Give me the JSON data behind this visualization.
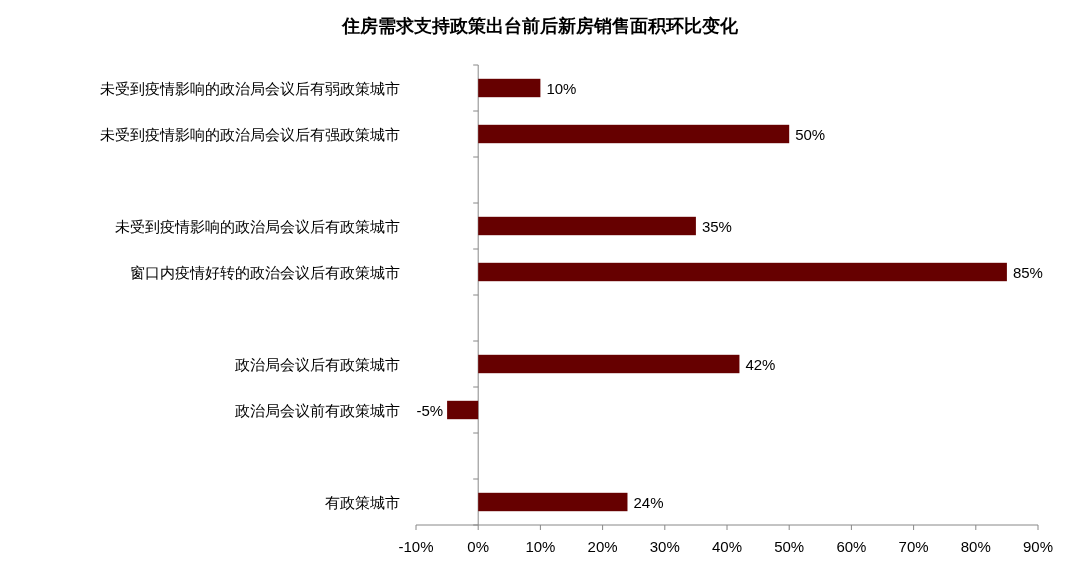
{
  "chart_data": {
    "type": "bar",
    "orientation": "horizontal",
    "title": "住房需求支持政策出台前后新房销售面积环比变化",
    "categories": [
      "未受到疫情影响的政治局会议后有弱政策城市",
      "未受到疫情影响的政治局会议后有强政策城市",
      null,
      "未受到疫情影响的政治局会议后有政策城市",
      "窗口内疫情好转的政治会议后有政策城市",
      null,
      "政治局会议后有政策城市",
      "政治局会议前有政策城市",
      null,
      "有政策城市"
    ],
    "values": [
      10,
      50,
      null,
      35,
      85,
      null,
      42,
      -5,
      null,
      24
    ],
    "value_labels": [
      "10%",
      "50%",
      null,
      "35%",
      "85%",
      null,
      "42%",
      "-5%",
      null,
      "24%"
    ],
    "color": "#660000",
    "xlim": [
      -10,
      90
    ],
    "xticks": [
      {
        "value": -10,
        "label": "-10%"
      },
      {
        "value": 0,
        "label": "0%"
      },
      {
        "value": 10,
        "label": "10%"
      },
      {
        "value": 20,
        "label": "20%"
      },
      {
        "value": 30,
        "label": "30%"
      },
      {
        "value": 40,
        "label": "40%"
      },
      {
        "value": 50,
        "label": "50%"
      },
      {
        "value": 60,
        "label": "60%"
      },
      {
        "value": 70,
        "label": "70%"
      },
      {
        "value": 80,
        "label": "80%"
      },
      {
        "value": 90,
        "label": "90%"
      }
    ]
  }
}
